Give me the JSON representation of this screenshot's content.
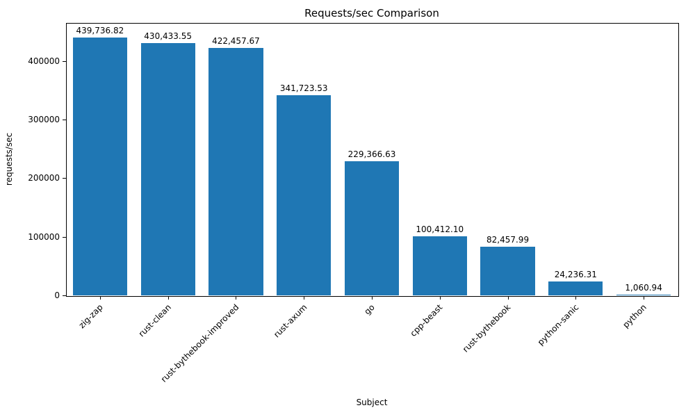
{
  "chart_data": {
    "type": "bar",
    "title": "Requests/sec Comparison",
    "xlabel": "Subject",
    "ylabel": "requests/sec",
    "categories": [
      "zig-zap",
      "rust-clean",
      "rust-bythebook-improved",
      "rust-axum",
      "go",
      "cpp-beast",
      "rust-bythebook",
      "python-sanic",
      "python"
    ],
    "values": [
      439736.82,
      430433.55,
      422457.67,
      341723.53,
      229366.63,
      100412.1,
      82457.99,
      24236.31,
      1060.94
    ],
    "value_labels": [
      "439,736.82",
      "430,433.55",
      "422,457.67",
      "341,723.53",
      "229,366.63",
      "100,412.10",
      "82,457.99",
      "24,236.31",
      "1,060.94"
    ],
    "yticks": [
      0,
      100000,
      200000,
      300000,
      400000
    ],
    "ytick_labels": [
      "0",
      "100000",
      "200000",
      "300000",
      "400000"
    ],
    "ylim": [
      0,
      465000
    ],
    "bar_color": "#1f77b4",
    "legend": "none",
    "grid": false
  }
}
